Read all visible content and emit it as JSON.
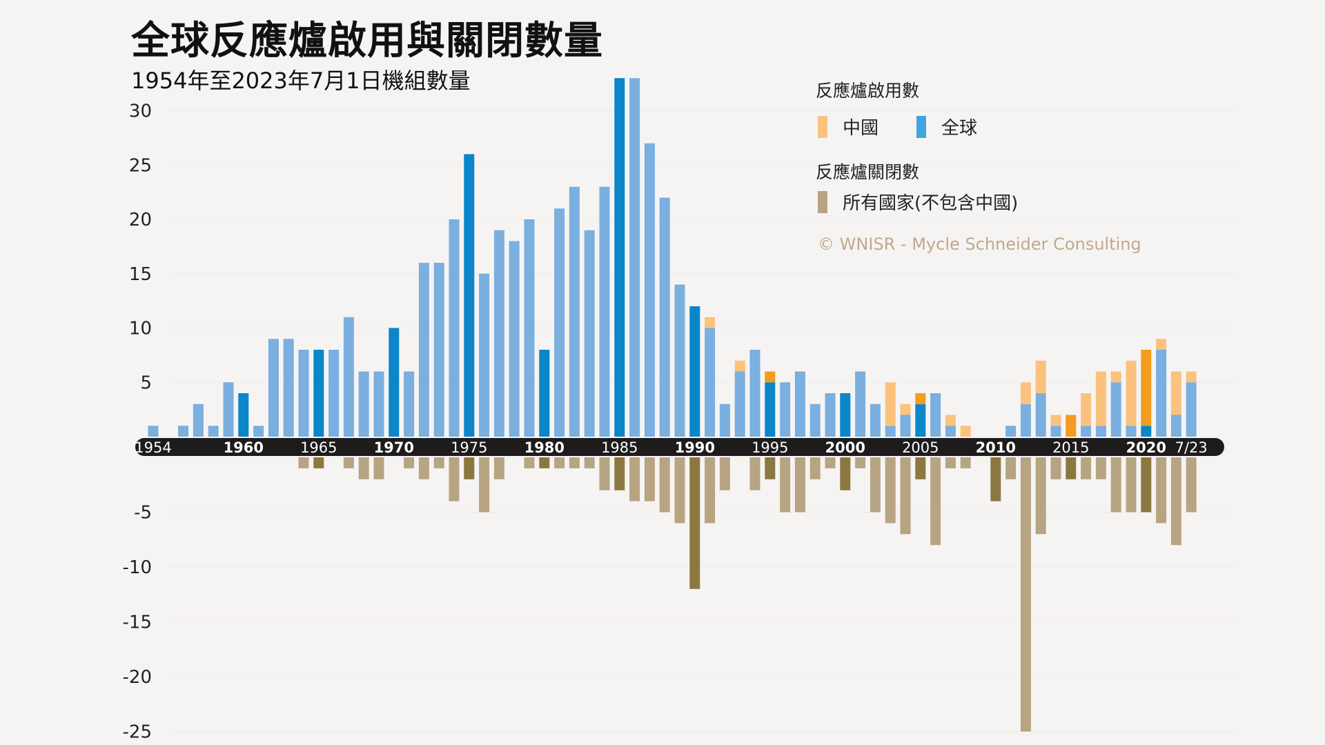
{
  "title": "全球反應爐啟用與關閉數量",
  "subtitle": "1954年至2023年7月1日機組數量",
  "legend": {
    "startups_heading": "反應爐啟用數",
    "china_label": "中國",
    "world_label": "全球",
    "closures_heading": "反應爐關閉數",
    "closures_label": "所有國家(不包含中國)"
  },
  "credit": "© WNISR - Mycle Schneider Consulting",
  "colors": {
    "world": "#7aafdf",
    "world_highlight": "#0a86c9",
    "china": "#fbc27e",
    "china_highlight": "#f39c1e",
    "closure": "#b7a482",
    "closure_highlight": "#8b7841",
    "axis_band": "#1d1b1b",
    "background": "#f6f4f3"
  },
  "chart_data": {
    "type": "bar",
    "stacked": true,
    "grid": true,
    "legend_position": "top-right",
    "y_ticks": [
      30,
      25,
      20,
      15,
      10,
      5,
      -5,
      -10,
      -15,
      -20,
      -25
    ],
    "ylim": [
      -26,
      34
    ],
    "x_tick_labels": [
      {
        "label": "1954",
        "index": 0,
        "bold": false
      },
      {
        "label": "1960",
        "index": 6,
        "bold": true
      },
      {
        "label": "1965",
        "index": 11,
        "bold": false
      },
      {
        "label": "1970",
        "index": 16,
        "bold": true
      },
      {
        "label": "1975",
        "index": 21,
        "bold": false
      },
      {
        "label": "1980",
        "index": 26,
        "bold": true
      },
      {
        "label": "1985",
        "index": 31,
        "bold": false
      },
      {
        "label": "1990",
        "index": 36,
        "bold": true
      },
      {
        "label": "1995",
        "index": 41,
        "bold": false
      },
      {
        "label": "2000",
        "index": 46,
        "bold": true
      },
      {
        "label": "2005",
        "index": 51,
        "bold": false
      },
      {
        "label": "2010",
        "index": 56,
        "bold": true
      },
      {
        "label": "2015",
        "index": 61,
        "bold": false
      },
      {
        "label": "2020",
        "index": 66,
        "bold": true
      },
      {
        "label": "7/23",
        "index": 69,
        "bold": false
      }
    ],
    "categories": [
      "1954",
      "1955",
      "1956",
      "1957",
      "1958",
      "1959",
      "1960",
      "1961",
      "1962",
      "1963",
      "1964",
      "1965",
      "1966",
      "1967",
      "1968",
      "1969",
      "1970",
      "1971",
      "1972",
      "1973",
      "1974",
      "1975",
      "1976",
      "1977",
      "1978",
      "1979",
      "1980",
      "1981",
      "1982",
      "1983",
      "1984",
      "1985",
      "1986",
      "1987",
      "1988",
      "1989",
      "1990",
      "1991",
      "1992",
      "1993",
      "1994",
      "1995",
      "1996",
      "1997",
      "1998",
      "1999",
      "2000",
      "2001",
      "2002",
      "2003",
      "2004",
      "2005",
      "2006",
      "2007",
      "2008",
      "2009",
      "2010",
      "2011",
      "2012",
      "2013",
      "2014",
      "2015",
      "2016",
      "2017",
      "2018",
      "2019",
      "2020",
      "2021",
      "2022",
      "7/23"
    ],
    "highlight_indices": [
      6,
      11,
      16,
      21,
      26,
      31,
      36,
      41,
      46,
      51,
      56,
      61,
      66
    ],
    "series": [
      {
        "name": "全球",
        "values": [
          1,
          0,
          1,
          3,
          1,
          5,
          4,
          1,
          9,
          9,
          8,
          8,
          8,
          11,
          6,
          6,
          10,
          6,
          16,
          16,
          20,
          26,
          15,
          19,
          18,
          20,
          8,
          21,
          23,
          19,
          23,
          33,
          33,
          27,
          22,
          14,
          12,
          10,
          3,
          6,
          8,
          5,
          5,
          6,
          3,
          4,
          4,
          6,
          3,
          1,
          2,
          3,
          4,
          1,
          0,
          0,
          0,
          1,
          3,
          4,
          1,
          0,
          1,
          1,
          5,
          1,
          1,
          8,
          2,
          5
        ]
      },
      {
        "name": "中國",
        "values": [
          0,
          0,
          0,
          0,
          0,
          0,
          0,
          0,
          0,
          0,
          0,
          0,
          0,
          0,
          0,
          0,
          0,
          0,
          0,
          0,
          0,
          0,
          0,
          0,
          0,
          0,
          0,
          0,
          0,
          0,
          0,
          0,
          0,
          0,
          0,
          0,
          0,
          1,
          0,
          1,
          0,
          1,
          0,
          0,
          0,
          0,
          0,
          0,
          0,
          4,
          1,
          1,
          0,
          1,
          1,
          0,
          0,
          0,
          2,
          3,
          1,
          2,
          3,
          5,
          1,
          6,
          7,
          1,
          4,
          1
        ]
      },
      {
        "name": "所有國家(不包含中國)",
        "values": [
          0,
          0,
          0,
          0,
          0,
          0,
          0,
          0,
          0,
          0,
          -1,
          -1,
          0,
          -1,
          -2,
          -2,
          0,
          -1,
          -2,
          -1,
          -4,
          -2,
          -5,
          -2,
          0,
          -1,
          -1,
          -1,
          -1,
          -1,
          -3,
          -3,
          -4,
          -4,
          -5,
          -6,
          -12,
          -6,
          -3,
          0,
          -3,
          -2,
          -5,
          -5,
          -2,
          -1,
          -3,
          -1,
          -5,
          -6,
          -7,
          -2,
          -8,
          -1,
          -1,
          0,
          -4,
          -2,
          -25,
          -7,
          -2,
          -2,
          -2,
          -2,
          -5,
          -5,
          -5,
          -6,
          -8,
          -5
        ]
      }
    ]
  }
}
